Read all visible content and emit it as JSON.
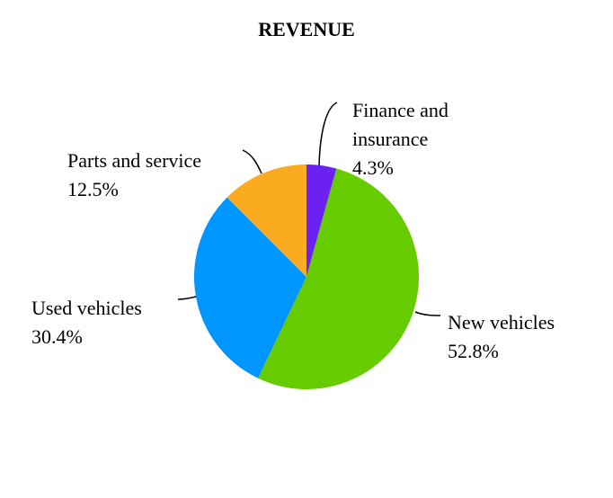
{
  "chart_data": {
    "type": "pie",
    "title": "REVENUE",
    "categories": [
      "Finance and insurance",
      "New vehicles",
      "Used vehicles",
      "Parts and service"
    ],
    "values": [
      4.3,
      52.8,
      30.4,
      12.5
    ],
    "value_labels": [
      "4.3%",
      "52.8%",
      "30.4%",
      "12.5%"
    ],
    "colors": [
      "#6b22f0",
      "#66cc00",
      "#0096ff",
      "#fbab1f"
    ]
  }
}
